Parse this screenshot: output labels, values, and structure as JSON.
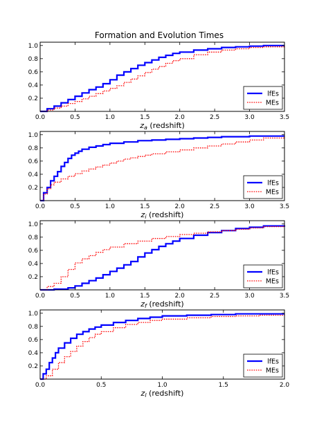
{
  "figure_title": "Formation and Evolution Times",
  "colors": {
    "lfes": "#0000ff",
    "mes": "#ff0000"
  },
  "chart_data": [
    {
      "type": "line",
      "title": "Formation and Evolution Times",
      "xlabel": "z_a (redshift)",
      "xlabel_symbol": "z",
      "xlabel_sub": "a",
      "xlabel_suffix": " (redshift)",
      "xlim": [
        0,
        3.5
      ],
      "ylim": [
        0,
        1.05
      ],
      "xticks": [
        "0.0",
        "0.5",
        "1.0",
        "1.5",
        "2.0",
        "2.5",
        "3.0",
        "3.5"
      ],
      "yticks": [
        "0.2",
        "0.4",
        "0.6",
        "0.8",
        "1.0"
      ],
      "legend_position": "lower-right",
      "step": true,
      "series": [
        {
          "name": "lfEs",
          "style": "solid",
          "x": [
            0,
            0.1,
            0.2,
            0.3,
            0.4,
            0.5,
            0.6,
            0.7,
            0.8,
            0.9,
            1.0,
            1.1,
            1.2,
            1.3,
            1.4,
            1.5,
            1.6,
            1.7,
            1.8,
            1.9,
            2.0,
            2.2,
            2.4,
            2.6,
            2.8,
            3.0,
            3.2,
            3.5
          ],
          "y": [
            0,
            0.04,
            0.08,
            0.13,
            0.18,
            0.23,
            0.28,
            0.33,
            0.37,
            0.42,
            0.48,
            0.55,
            0.6,
            0.65,
            0.7,
            0.74,
            0.78,
            0.82,
            0.85,
            0.88,
            0.9,
            0.93,
            0.95,
            0.97,
            0.98,
            0.99,
            1.0,
            1.0
          ]
        },
        {
          "name": "MEs",
          "style": "dotted",
          "x": [
            0,
            0.1,
            0.2,
            0.3,
            0.4,
            0.5,
            0.6,
            0.7,
            0.8,
            0.9,
            1.0,
            1.1,
            1.2,
            1.3,
            1.4,
            1.5,
            1.6,
            1.7,
            1.8,
            1.9,
            2.0,
            2.2,
            2.4,
            2.6,
            2.8,
            3.0,
            3.2,
            3.5
          ],
          "y": [
            0,
            0.02,
            0.05,
            0.08,
            0.12,
            0.15,
            0.19,
            0.23,
            0.27,
            0.31,
            0.35,
            0.39,
            0.44,
            0.49,
            0.54,
            0.59,
            0.64,
            0.68,
            0.73,
            0.77,
            0.8,
            0.86,
            0.9,
            0.93,
            0.95,
            0.97,
            0.98,
            1.0
          ]
        }
      ]
    },
    {
      "type": "line",
      "xlabel": "z_i (redshift)",
      "xlabel_symbol": "z",
      "xlabel_sub": "i",
      "xlabel_suffix": " (redshift)",
      "xlim": [
        0,
        3.5
      ],
      "ylim": [
        0,
        1.05
      ],
      "xticks": [
        "0.0",
        "0.5",
        "1.0",
        "1.5",
        "2.0",
        "2.5",
        "3.0",
        "3.5"
      ],
      "yticks": [
        "0.2",
        "0.4",
        "0.6",
        "0.8",
        "1.0"
      ],
      "legend_position": "lower-right",
      "step": true,
      "series": [
        {
          "name": "lfEs",
          "style": "solid",
          "x": [
            0,
            0.05,
            0.1,
            0.15,
            0.2,
            0.25,
            0.3,
            0.35,
            0.4,
            0.45,
            0.5,
            0.55,
            0.6,
            0.7,
            0.8,
            0.9,
            1.0,
            1.2,
            1.4,
            1.6,
            1.8,
            2.0,
            2.2,
            2.4,
            2.6,
            3.0,
            3.5
          ],
          "y": [
            0,
            0.12,
            0.2,
            0.3,
            0.37,
            0.44,
            0.52,
            0.58,
            0.64,
            0.69,
            0.72,
            0.75,
            0.78,
            0.81,
            0.83,
            0.85,
            0.87,
            0.89,
            0.91,
            0.92,
            0.93,
            0.94,
            0.95,
            0.96,
            0.97,
            0.98,
            0.98
          ]
        },
        {
          "name": "MEs",
          "style": "dotted",
          "x": [
            0,
            0.05,
            0.1,
            0.15,
            0.2,
            0.3,
            0.4,
            0.5,
            0.6,
            0.7,
            0.8,
            0.9,
            1.0,
            1.1,
            1.2,
            1.3,
            1.4,
            1.5,
            1.6,
            1.8,
            2.0,
            2.2,
            2.4,
            2.6,
            2.8,
            3.0,
            3.2,
            3.5
          ],
          "y": [
            0,
            0.1,
            0.18,
            0.24,
            0.28,
            0.33,
            0.37,
            0.41,
            0.45,
            0.48,
            0.51,
            0.54,
            0.57,
            0.6,
            0.63,
            0.65,
            0.67,
            0.69,
            0.71,
            0.74,
            0.77,
            0.8,
            0.83,
            0.86,
            0.89,
            0.92,
            0.95,
            0.97
          ]
        }
      ]
    },
    {
      "type": "line",
      "xlabel": "z_f (redshift)",
      "xlabel_symbol": "z",
      "xlabel_sub": "f",
      "xlabel_suffix": " (redshift)",
      "xlim": [
        0,
        3.5
      ],
      "ylim": [
        0,
        1.05
      ],
      "xticks": [
        "0.0",
        "0.5",
        "1.0",
        "1.5",
        "2.0",
        "2.5",
        "3.0",
        "3.5"
      ],
      "yticks": [
        "0.2",
        "0.4",
        "0.6",
        "0.8",
        "1.0"
      ],
      "legend_position": "lower-right",
      "step": true,
      "series": [
        {
          "name": "lfEs",
          "style": "solid",
          "x": [
            0,
            0.2,
            0.4,
            0.5,
            0.6,
            0.7,
            0.8,
            0.9,
            1.0,
            1.1,
            1.2,
            1.3,
            1.4,
            1.5,
            1.6,
            1.7,
            1.8,
            1.9,
            2.0,
            2.2,
            2.4,
            2.6,
            2.8,
            3.0,
            3.2,
            3.5
          ],
          "y": [
            0,
            0.01,
            0.03,
            0.06,
            0.1,
            0.14,
            0.18,
            0.23,
            0.28,
            0.33,
            0.38,
            0.43,
            0.5,
            0.56,
            0.61,
            0.66,
            0.7,
            0.74,
            0.78,
            0.83,
            0.87,
            0.9,
            0.93,
            0.95,
            0.97,
            0.98
          ]
        },
        {
          "name": "MEs",
          "style": "dotted",
          "x": [
            0,
            0.1,
            0.2,
            0.3,
            0.4,
            0.5,
            0.6,
            0.7,
            0.8,
            0.9,
            1.0,
            1.2,
            1.4,
            1.6,
            1.8,
            2.0,
            2.2,
            2.4,
            2.6,
            2.8,
            3.0,
            3.2,
            3.5
          ],
          "y": [
            0,
            0.05,
            0.1,
            0.2,
            0.31,
            0.41,
            0.47,
            0.52,
            0.57,
            0.61,
            0.65,
            0.7,
            0.74,
            0.78,
            0.81,
            0.84,
            0.86,
            0.88,
            0.9,
            0.92,
            0.94,
            0.96,
            0.98
          ]
        }
      ]
    },
    {
      "type": "line",
      "xlabel": "z_l (redshift)",
      "xlabel_symbol": "z",
      "xlabel_sub": "l",
      "xlabel_suffix": " (redshift)",
      "xlim": [
        0,
        2.0
      ],
      "ylim": [
        0,
        1.05
      ],
      "xticks": [
        "0.0",
        "0.5",
        "1.0",
        "1.5",
        "2.0"
      ],
      "yticks": [
        "0.2",
        "0.4",
        "0.6",
        "0.8",
        "1.0"
      ],
      "legend_position": "lower-right",
      "step": true,
      "series": [
        {
          "name": "lfEs",
          "style": "solid",
          "x": [
            0,
            0.025,
            0.05,
            0.075,
            0.1,
            0.125,
            0.15,
            0.2,
            0.25,
            0.3,
            0.35,
            0.4,
            0.45,
            0.5,
            0.6,
            0.7,
            0.8,
            0.9,
            1.0,
            1.2,
            1.4,
            1.6,
            1.8,
            2.0
          ],
          "y": [
            0,
            0.08,
            0.15,
            0.25,
            0.32,
            0.4,
            0.47,
            0.55,
            0.62,
            0.68,
            0.72,
            0.76,
            0.79,
            0.82,
            0.86,
            0.89,
            0.92,
            0.94,
            0.96,
            0.97,
            0.98,
            0.99,
            0.99,
            0.99
          ]
        },
        {
          "name": "MEs",
          "style": "dotted",
          "x": [
            0,
            0.05,
            0.1,
            0.15,
            0.2,
            0.25,
            0.3,
            0.35,
            0.4,
            0.45,
            0.5,
            0.6,
            0.7,
            0.8,
            0.9,
            1.0,
            1.2,
            1.4,
            1.6,
            1.8,
            2.0
          ],
          "y": [
            0,
            0.05,
            0.15,
            0.25,
            0.34,
            0.42,
            0.5,
            0.57,
            0.63,
            0.68,
            0.72,
            0.78,
            0.83,
            0.86,
            0.89,
            0.91,
            0.93,
            0.95,
            0.96,
            0.97,
            0.98
          ]
        }
      ]
    }
  ]
}
